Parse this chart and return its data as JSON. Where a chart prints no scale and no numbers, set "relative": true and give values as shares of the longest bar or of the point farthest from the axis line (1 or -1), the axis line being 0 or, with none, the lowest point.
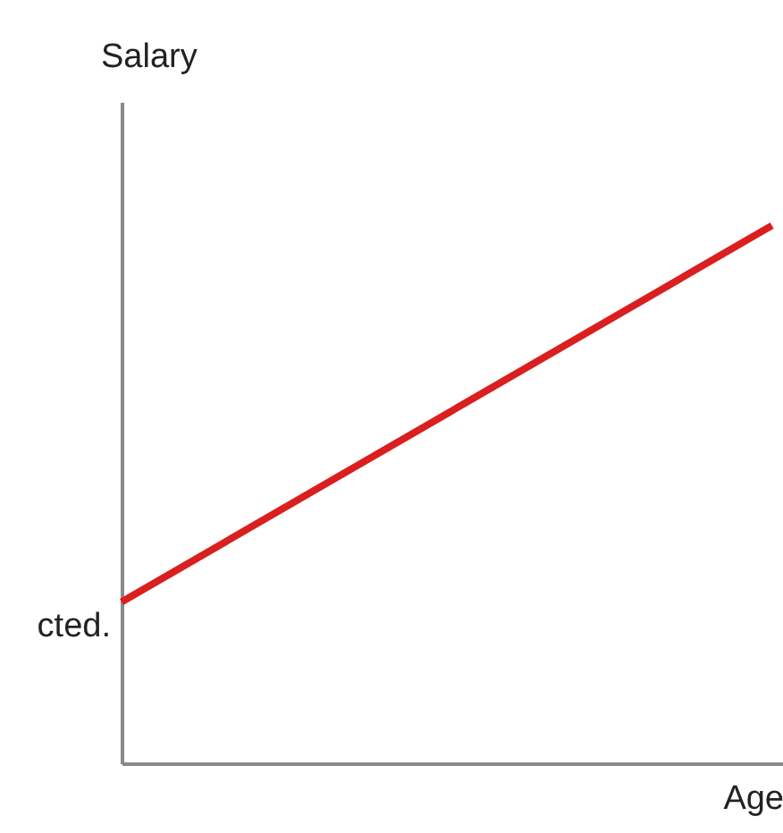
{
  "chart_data": {
    "type": "line",
    "relative": true,
    "ylabel": "Salary",
    "xlabel": "Age",
    "categories": [
      null,
      null
    ],
    "series": [
      {
        "color": "#d91f1f",
        "values": [
          0.3,
          1
        ]
      }
    ],
    "annotations": [
      "cted."
    ],
    "grid": false,
    "legend": false,
    "tick_labels": false,
    "marker": "none",
    "line_style": "solid"
  }
}
